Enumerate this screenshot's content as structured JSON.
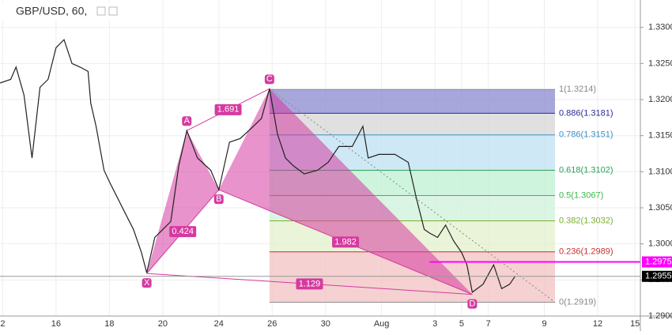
{
  "chart_data": {
    "type": "line",
    "title": "GBP/USD, 60,",
    "x": [
      0,
      4,
      6,
      9,
      12,
      15,
      18,
      21,
      24,
      27,
      30,
      33,
      34,
      36,
      39,
      41,
      44,
      47,
      50,
      53,
      55,
      58,
      61,
      64,
      67,
      70,
      74,
      79,
      82,
      86,
      90,
      95,
      98,
      101,
      104,
      107,
      110,
      114,
      119,
      123,
      127,
      132,
      136,
      138,
      142,
      148,
      153,
      156,
      159,
      161,
      164,
      167,
      170,
      173,
      175,
      177,
      181,
      185,
      188,
      191,
      193
    ],
    "series": [
      {
        "name": "GBP/USD",
        "color": "#222222",
        "values": [
          1.3223,
          1.3228,
          1.3245,
          1.3206,
          1.3119,
          1.3217,
          1.3228,
          1.3272,
          1.3283,
          1.325,
          1.3245,
          1.3239,
          1.3195,
          1.3163,
          1.3102,
          1.3086,
          1.3064,
          1.3042,
          1.302,
          1.2988,
          1.296,
          1.3009,
          1.302,
          1.3031,
          1.3108,
          1.3157,
          1.3119,
          1.3102,
          1.3075,
          1.3141,
          1.3146,
          1.3163,
          1.3174,
          1.3215,
          1.3152,
          1.3119,
          1.3108,
          1.3097,
          1.3102,
          1.3113,
          1.3135,
          1.3135,
          1.3163,
          1.3119,
          1.3124,
          1.3124,
          1.3113,
          1.3064,
          1.302,
          1.3015,
          1.3009,
          1.3026,
          1.3004,
          1.2988,
          1.2971,
          1.2933,
          1.2944,
          1.2971,
          1.2938,
          1.2944,
          1.2955
        ]
      }
    ],
    "xlim": [
      0,
      240
    ],
    "xticks": [
      {
        "value": 1,
        "label": "2"
      },
      {
        "value": 21,
        "label": "16"
      },
      {
        "value": 41,
        "label": "18"
      },
      {
        "value": 61,
        "label": "20"
      },
      {
        "value": 82,
        "label": "24"
      },
      {
        "value": 102,
        "label": "26"
      },
      {
        "value": 122,
        "label": "30"
      },
      {
        "value": 143,
        "label": "Aug"
      },
      {
        "value": 163,
        "label": "3"
      },
      {
        "value": 173,
        "label": "5"
      },
      {
        "value": 183,
        "label": "7"
      },
      {
        "value": 204,
        "label": "9"
      },
      {
        "value": 224,
        "label": "12"
      },
      {
        "value": 238,
        "label": "15"
      }
    ],
    "ylim": [
      1.29,
      1.3338
    ],
    "yticks": [
      {
        "value": 1.29,
        "label": "1.2900"
      },
      {
        "value": 1.295,
        "label": "1.2950"
      },
      {
        "value": 1.3,
        "label": "1.3000"
      },
      {
        "value": 1.305,
        "label": "1.3050"
      },
      {
        "value": 1.31,
        "label": "1.3100"
      },
      {
        "value": 1.315,
        "label": "1.3150"
      },
      {
        "value": 1.32,
        "label": "1.3200"
      },
      {
        "value": 1.325,
        "label": "1.3250"
      },
      {
        "value": 1.33,
        "label": "1.3300"
      }
    ],
    "grid": true,
    "pattern": {
      "color": "#d63aa0",
      "points": [
        {
          "label": "X",
          "x": 55,
          "y": 1.2959
        },
        {
          "label": "A",
          "x": 70,
          "y": 1.3157
        },
        {
          "label": "B",
          "x": 82,
          "y": 1.3075
        },
        {
          "label": "C",
          "x": 101,
          "y": 1.3215
        },
        {
          "label": "D",
          "x": 177,
          "y": 1.293
        }
      ],
      "ratios": [
        0.424,
        1.691,
        1.982,
        1.129
      ]
    },
    "fib": {
      "x_range": [
        101,
        208
      ],
      "levels": [
        {
          "label": "1(1.3214)",
          "value": 1.3214,
          "color": "#888888",
          "fill": "#8a8ad0"
        },
        {
          "label": "0.886(1.3181)",
          "value": 1.3181,
          "color": "#2a2a9a",
          "fill": "#d6d6d6"
        },
        {
          "label": "0.786(1.3151)",
          "value": 1.3151,
          "color": "#3d8fc4",
          "fill": "#bfe0f2"
        },
        {
          "label": "0.618(1.3102)",
          "value": 1.3102,
          "color": "#2ca05a",
          "fill": "#bdf0d3"
        },
        {
          "label": "0.5(1.3067)",
          "value": 1.3067,
          "color": "#3cb84a",
          "fill": "#cdf2d9"
        },
        {
          "label": "0.382(1.3032)",
          "value": 1.3032,
          "color": "#7ab030",
          "fill": "#e3f0cb"
        },
        {
          "label": "0.236(1.2989)",
          "value": 1.2989,
          "color": "#c83030",
          "fill": "#f2c2c2"
        },
        {
          "label": "0(1.2919)",
          "value": 1.2919,
          "color": "#888888",
          "fill": "none"
        }
      ]
    },
    "price_tags": [
      {
        "value": 1.2975,
        "color": "#ff00ff"
      },
      {
        "value": 1.2955,
        "color": "#000000"
      }
    ]
  }
}
